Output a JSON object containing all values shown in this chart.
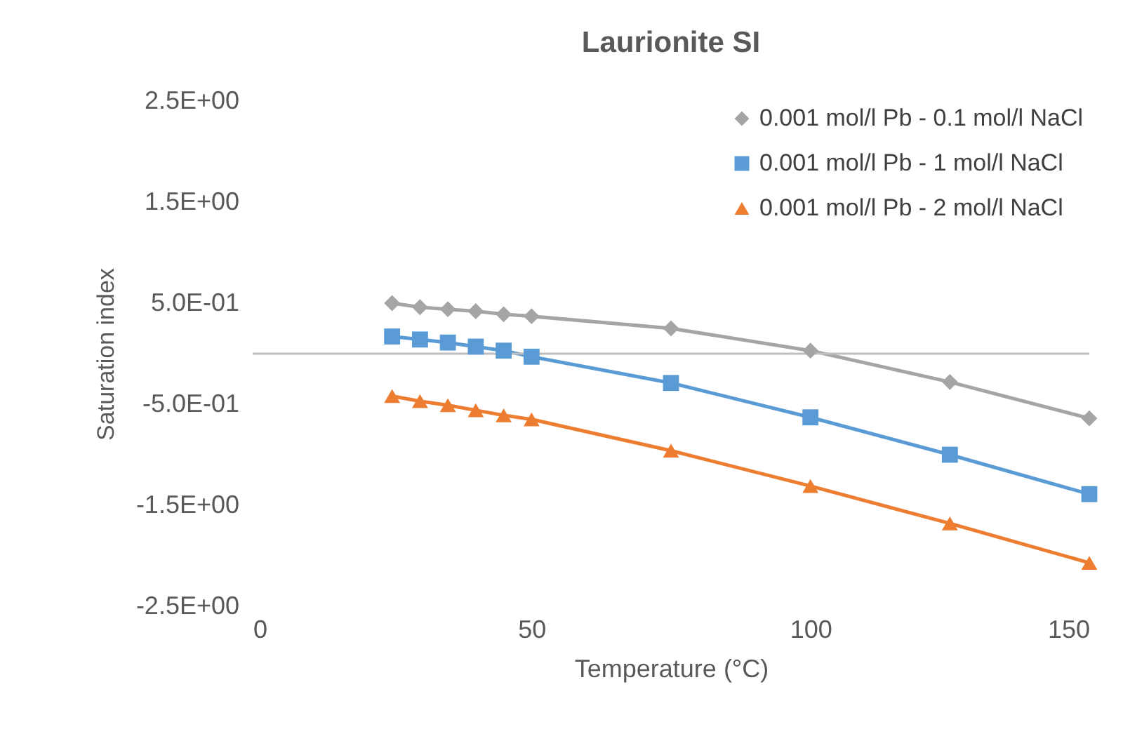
{
  "chart_data": {
    "type": "line",
    "title": "Laurionite SI",
    "xlabel": "Temperature (°C)",
    "ylabel": "Saturation index",
    "x": [
      25,
      30,
      35,
      40,
      45,
      50,
      75,
      100,
      125,
      150
    ],
    "series": [
      {
        "name": "0.001 mol/l Pb - 0.1 mol/l NaCl",
        "color": "#a5a5a5",
        "marker": "diamond",
        "values": [
          0.5,
          0.46,
          0.44,
          0.42,
          0.39,
          0.37,
          0.25,
          0.03,
          -0.28,
          -0.64
        ]
      },
      {
        "name": "0.001 mol/l Pb - 1 mol/l NaCl",
        "color": "#5b9bd5",
        "marker": "square",
        "values": [
          0.17,
          0.14,
          0.11,
          0.07,
          0.03,
          -0.03,
          -0.29,
          -0.63,
          -1.0,
          -1.39
        ]
      },
      {
        "name": "0.001 mol/l Pb - 2 mol/l NaCl",
        "color": "#ed7d31",
        "marker": "triangle",
        "values": [
          -0.42,
          -0.47,
          -0.51,
          -0.56,
          -0.61,
          -0.65,
          -0.96,
          -1.31,
          -1.68,
          -2.07
        ]
      }
    ],
    "xlim": [
      0,
      150
    ],
    "xticks": [
      0,
      50,
      100,
      150
    ],
    "ylim": [
      -2.5,
      2.5
    ],
    "yticks": [
      {
        "value": -2.5,
        "label": "-2.5E+00"
      },
      {
        "value": -1.5,
        "label": "-1.5E+00"
      },
      {
        "value": -0.5,
        "label": "-5.0E-01"
      },
      {
        "value": 0.5,
        "label": "5.0E-01"
      },
      {
        "value": 1.5,
        "label": "1.5E+00"
      },
      {
        "value": 2.5,
        "label": "2.5E+00"
      }
    ],
    "ref_lines": [
      {
        "axis": "y",
        "value": 0,
        "color": "#bfbfbf"
      }
    ],
    "grid": false,
    "legend": "top right"
  }
}
